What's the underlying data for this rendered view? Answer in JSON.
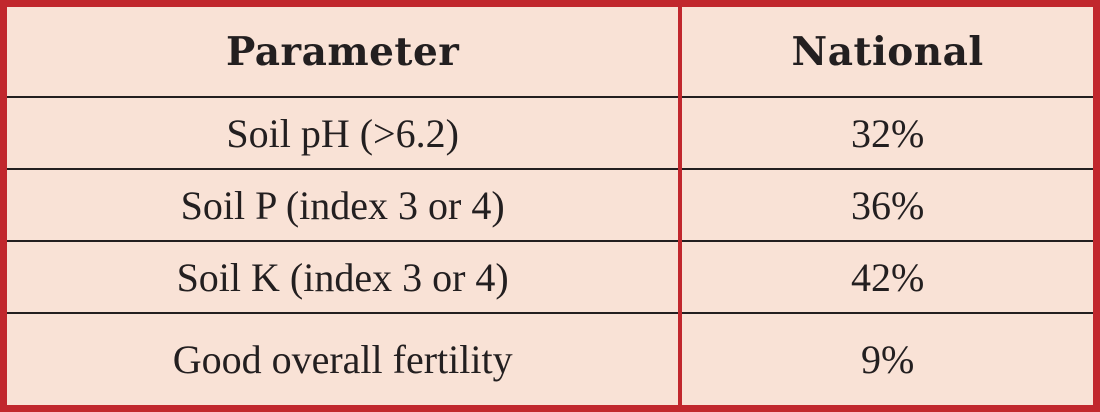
{
  "colors": {
    "border_red": "#c1272d",
    "background_peach": "#f9e2d6",
    "row_line": "#231f20",
    "text": "#231f20"
  },
  "chart_data": {
    "type": "table",
    "title": "",
    "columns": [
      "Parameter",
      "National"
    ],
    "rows": [
      [
        "Soil pH (>6.2)",
        "32%"
      ],
      [
        "Soil P (index 3 or 4)",
        "36%"
      ],
      [
        "Soil K (index 3 or 4)",
        "42%"
      ],
      [
        "Good overall fertility",
        "9%"
      ]
    ]
  }
}
